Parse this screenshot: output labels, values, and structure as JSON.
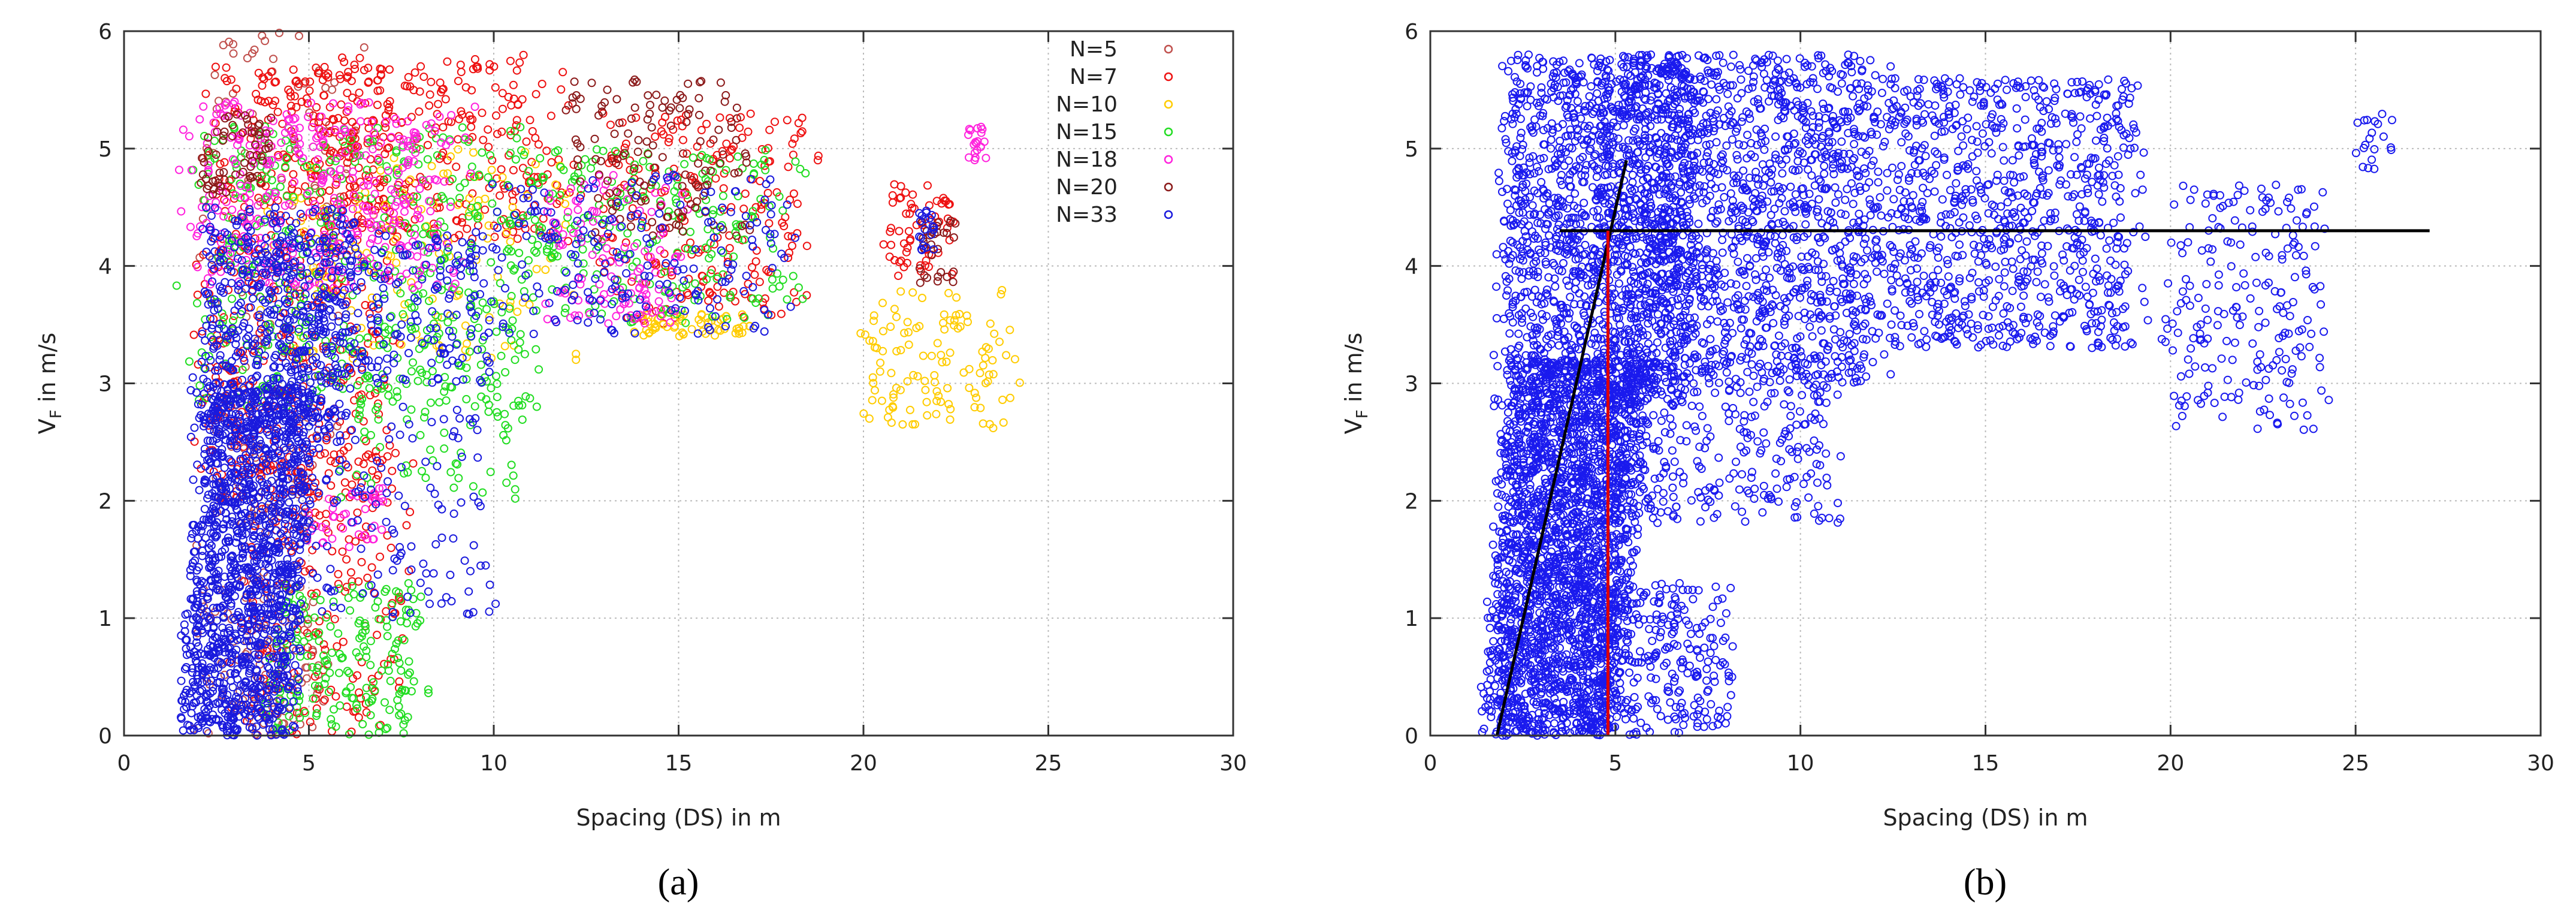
{
  "chart_data": [
    {
      "type": "scatter",
      "panel_label": "(a)",
      "xlabel": "Spacing (DS) in m",
      "ylabel": "V",
      "ylabel_sub": "F",
      "ylabel_suffix": " in m/s",
      "xlim": [
        0,
        30
      ],
      "ylim": [
        0,
        6
      ],
      "xticks": [
        0,
        5,
        10,
        15,
        20,
        25,
        30
      ],
      "yticks": [
        0,
        1,
        2,
        3,
        4,
        5,
        6
      ],
      "grid": true,
      "legend_position": "top-right",
      "series": [
        {
          "name": "N=5",
          "color": "#c0504d",
          "clusters": [
            {
              "x": [
                1.8,
                4.8
              ],
              "y": [
                0,
                2.8
              ],
              "n": 120,
              "tilt": 0.6
            },
            {
              "x": [
                2,
                6
              ],
              "y": [
                2.5,
                6
              ],
              "n": 90,
              "tilt": 0.3
            },
            {
              "x": [
                3,
                5.5
              ],
              "y": [
                0,
                0.8
              ],
              "n": 40,
              "tilt": 0
            }
          ]
        },
        {
          "name": "N=7",
          "color": "#ee1111",
          "clusters": [
            {
              "x": [
                2,
                7
              ],
              "y": [
                2,
                5.7
              ],
              "n": 500,
              "tilt": 0.3
            },
            {
              "x": [
                5,
                12
              ],
              "y": [
                4.2,
                5.8
              ],
              "n": 300,
              "tilt": 0
            },
            {
              "x": [
                3,
                7.5
              ],
              "y": [
                0,
                2.5
              ],
              "n": 200,
              "tilt": 0.2
            },
            {
              "x": [
                13,
                18.5
              ],
              "y": [
                3.5,
                5.3
              ],
              "n": 220,
              "tilt": 0
            },
            {
              "x": [
                20.5,
                22.5
              ],
              "y": [
                3.9,
                4.7
              ],
              "n": 60,
              "tilt": -0.4
            }
          ]
        },
        {
          "name": "N=10",
          "color": "#ffcc00",
          "clusters": [
            {
              "x": [
                20,
                24
              ],
              "y": [
                2.6,
                3.8
              ],
              "n": 120,
              "tilt": 0
            },
            {
              "x": [
                14,
                17
              ],
              "y": [
                3.4,
                3.6
              ],
              "n": 60,
              "tilt": 0
            },
            {
              "x": [
                4,
                12
              ],
              "y": [
                3.2,
                5.0
              ],
              "n": 140,
              "tilt": 0
            }
          ]
        },
        {
          "name": "N=15",
          "color": "#22dd22",
          "clusters": [
            {
              "x": [
                2,
                11
              ],
              "y": [
                2.8,
                5.2
              ],
              "n": 450,
              "tilt": 0.2
            },
            {
              "x": [
                4,
                8
              ],
              "y": [
                0,
                1.3
              ],
              "n": 200,
              "tilt": 0
            },
            {
              "x": [
                6,
                11
              ],
              "y": [
                2,
                3.5
              ],
              "n": 100,
              "tilt": -0.3
            },
            {
              "x": [
                11,
                18
              ],
              "y": [
                3.5,
                5.0
              ],
              "n": 220,
              "tilt": 0
            }
          ]
        },
        {
          "name": "N=18",
          "color": "#ff22dd",
          "clusters": [
            {
              "x": [
                2,
                9
              ],
              "y": [
                3.8,
                5.4
              ],
              "n": 360,
              "tilt": 0
            },
            {
              "x": [
                11.5,
                15
              ],
              "y": [
                3.5,
                4.8
              ],
              "n": 120,
              "tilt": 0
            },
            {
              "x": [
                22.8,
                23.3
              ],
              "y": [
                4.9,
                5.2
              ],
              "n": 20,
              "tilt": 0
            },
            {
              "x": [
                5,
                7
              ],
              "y": [
                1.6,
                2.2
              ],
              "n": 40,
              "tilt": 0
            }
          ]
        },
        {
          "name": "N=20",
          "color": "#8b1a1a",
          "clusters": [
            {
              "x": [
                12,
                17
              ],
              "y": [
                4.2,
                5.6
              ],
              "n": 140,
              "tilt": 0
            },
            {
              "x": [
                21.5,
                22.5
              ],
              "y": [
                3.8,
                4.4
              ],
              "n": 30,
              "tilt": 0
            },
            {
              "x": [
                2,
                4
              ],
              "y": [
                4.6,
                5.3
              ],
              "n": 60,
              "tilt": 0
            }
          ]
        },
        {
          "name": "N=33",
          "color": "#1a1add",
          "clusters": [
            {
              "x": [
                1.5,
                4.5
              ],
              "y": [
                0,
                3.0
              ],
              "n": 1400,
              "tilt": 0.7
            },
            {
              "x": [
                2,
                6
              ],
              "y": [
                2.5,
                4.5
              ],
              "n": 500,
              "tilt": 0.3
            },
            {
              "x": [
                4,
                10
              ],
              "y": [
                3.0,
                4.3
              ],
              "n": 250,
              "tilt": 0
            },
            {
              "x": [
                10,
                18
              ],
              "y": [
                3.4,
                4.8
              ],
              "n": 200,
              "tilt": 0
            },
            {
              "x": [
                5,
                10
              ],
              "y": [
                1.0,
                2.8
              ],
              "n": 120,
              "tilt": -0.2
            },
            {
              "x": [
                21.5,
                22
              ],
              "y": [
                4.1,
                4.5
              ],
              "n": 20,
              "tilt": 0
            }
          ]
        }
      ]
    },
    {
      "type": "scatter",
      "panel_label": "(b)",
      "xlabel": "Spacing (DS) in m",
      "ylabel": "V",
      "ylabel_sub": "F",
      "ylabel_suffix": " in m/s",
      "xlim": [
        0,
        30
      ],
      "ylim": [
        0,
        6
      ],
      "xticks": [
        0,
        5,
        10,
        15,
        20,
        25,
        30
      ],
      "yticks": [
        0,
        1,
        2,
        3,
        4,
        5,
        6
      ],
      "grid": true,
      "series": [
        {
          "color": "#1a1aee",
          "clusters": [
            {
              "x": [
                1.5,
                5
              ],
              "y": [
                0,
                3.2
              ],
              "n": 2400,
              "tilt": 0.7
            },
            {
              "x": [
                2,
                7
              ],
              "y": [
                2.8,
                5.8
              ],
              "n": 1400,
              "tilt": 0.2
            },
            {
              "x": [
                5,
                12
              ],
              "y": [
                3.0,
                5.8
              ],
              "n": 1400,
              "tilt": 0
            },
            {
              "x": [
                12,
                19
              ],
              "y": [
                3.3,
                5.6
              ],
              "n": 900,
              "tilt": 0
            },
            {
              "x": [
                4,
                8
              ],
              "y": [
                0,
                1.3
              ],
              "n": 300,
              "tilt": 0
            },
            {
              "x": [
                5,
                11
              ],
              "y": [
                1.8,
                3.2
              ],
              "n": 300,
              "tilt": -0.2
            },
            {
              "x": [
                20,
                24
              ],
              "y": [
                2.6,
                4.7
              ],
              "n": 220,
              "tilt": 0
            },
            {
              "x": [
                25,
                26
              ],
              "y": [
                4.8,
                5.3
              ],
              "n": 20,
              "tilt": 0
            }
          ]
        }
      ],
      "lines": [
        {
          "color": "#000000",
          "x": [
            1.8,
            5.3
          ],
          "y": [
            0,
            4.9
          ]
        },
        {
          "color": "#000000",
          "x": [
            3.5,
            27
          ],
          "y": [
            4.3,
            4.3
          ]
        },
        {
          "color": "#dd0000",
          "x": [
            4.8,
            4.8
          ],
          "y": [
            0,
            4.3
          ]
        }
      ]
    }
  ]
}
